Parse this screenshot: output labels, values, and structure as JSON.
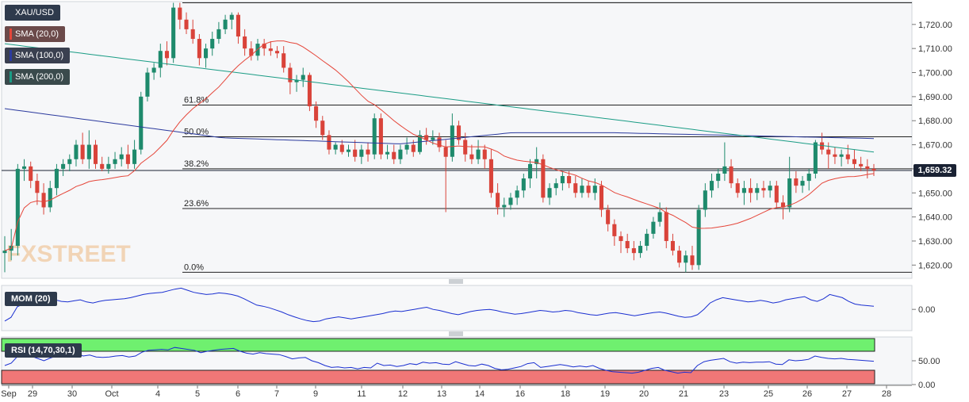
{
  "chart_data": {
    "type": "candlestick",
    "symbol": "XAU/USD",
    "last_price": "1,659.32",
    "y_ticks": [
      "1,720.00",
      "1,710.00",
      "1,700.00",
      "1,690.00",
      "1,680.00",
      "1,670.00",
      "1,660.00",
      "1,650.00",
      "1,640.00",
      "1,630.00",
      "1,620.00"
    ],
    "y_tick_values": [
      1720,
      1710,
      1700,
      1690,
      1680,
      1670,
      1660,
      1650,
      1640,
      1630,
      1620
    ],
    "ylim": [
      1614.5,
      1729.5
    ],
    "x_ticks": [
      "Sep",
      "29",
      "30",
      "Oct",
      "4",
      "5",
      "6",
      "7",
      "9",
      "11",
      "12",
      "13",
      "14",
      "16",
      "18",
      "19",
      "20",
      "21",
      "23",
      "25",
      "26",
      "27",
      "28"
    ],
    "legend": [
      {
        "name": "SMA (20,0)",
        "color": "#e5463a"
      },
      {
        "name": "SMA (100,0)",
        "color": "#2b3a9e"
      },
      {
        "name": "SMA (200,0)",
        "color": "#1a9c85"
      }
    ],
    "fibonacci": [
      {
        "label": "61.8%",
        "value": 1686.5
      },
      {
        "label": "50.0%",
        "value": 1673.3
      },
      {
        "label": "38.2%",
        "value": 1660.0
      },
      {
        "label": "23.6%",
        "value": 1643.5
      },
      {
        "label": "0.0%",
        "value": 1617.0
      }
    ],
    "top_line": 1729.0,
    "candles": [
      {
        "o": 1625,
        "h": 1632,
        "l": 1617,
        "c": 1626
      },
      {
        "o": 1626,
        "h": 1635,
        "l": 1622,
        "c": 1628
      },
      {
        "o": 1628,
        "h": 1662,
        "l": 1624,
        "c": 1660
      },
      {
        "o": 1660,
        "h": 1664,
        "l": 1655,
        "c": 1661
      },
      {
        "o": 1661,
        "h": 1663,
        "l": 1652,
        "c": 1655
      },
      {
        "o": 1655,
        "h": 1658,
        "l": 1645,
        "c": 1650
      },
      {
        "o": 1650,
        "h": 1654,
        "l": 1641,
        "c": 1644
      },
      {
        "o": 1644,
        "h": 1655,
        "l": 1642,
        "c": 1652
      },
      {
        "o": 1652,
        "h": 1662,
        "l": 1649,
        "c": 1660
      },
      {
        "o": 1660,
        "h": 1664,
        "l": 1657,
        "c": 1662
      },
      {
        "o": 1662,
        "h": 1666,
        "l": 1659,
        "c": 1664
      },
      {
        "o": 1664,
        "h": 1672,
        "l": 1661,
        "c": 1670
      },
      {
        "o": 1670,
        "h": 1675,
        "l": 1662,
        "c": 1664
      },
      {
        "o": 1664,
        "h": 1676,
        "l": 1660,
        "c": 1670
      },
      {
        "o": 1670,
        "h": 1672,
        "l": 1660,
        "c": 1662
      },
      {
        "o": 1662,
        "h": 1665,
        "l": 1659,
        "c": 1660
      },
      {
        "o": 1660,
        "h": 1665,
        "l": 1658,
        "c": 1662
      },
      {
        "o": 1662,
        "h": 1667,
        "l": 1660,
        "c": 1664
      },
      {
        "o": 1664,
        "h": 1669,
        "l": 1661,
        "c": 1666
      },
      {
        "o": 1666,
        "h": 1670,
        "l": 1660,
        "c": 1662
      },
      {
        "o": 1662,
        "h": 1672,
        "l": 1660,
        "c": 1668
      },
      {
        "o": 1668,
        "h": 1692,
        "l": 1666,
        "c": 1690
      },
      {
        "o": 1690,
        "h": 1702,
        "l": 1688,
        "c": 1700
      },
      {
        "o": 1700,
        "h": 1704,
        "l": 1697,
        "c": 1702
      },
      {
        "o": 1702,
        "h": 1712,
        "l": 1698,
        "c": 1709
      },
      {
        "o": 1709,
        "h": 1713,
        "l": 1703,
        "c": 1706
      },
      {
        "o": 1706,
        "h": 1729,
        "l": 1704,
        "c": 1727
      },
      {
        "o": 1727,
        "h": 1729,
        "l": 1718,
        "c": 1722
      },
      {
        "o": 1722,
        "h": 1725,
        "l": 1716,
        "c": 1718
      },
      {
        "o": 1718,
        "h": 1722,
        "l": 1712,
        "c": 1714
      },
      {
        "o": 1714,
        "h": 1716,
        "l": 1703,
        "c": 1706
      },
      {
        "o": 1706,
        "h": 1712,
        "l": 1702,
        "c": 1710
      },
      {
        "o": 1710,
        "h": 1717,
        "l": 1707,
        "c": 1714
      },
      {
        "o": 1714,
        "h": 1721,
        "l": 1712,
        "c": 1718
      },
      {
        "o": 1718,
        "h": 1724,
        "l": 1716,
        "c": 1722
      },
      {
        "o": 1722,
        "h": 1725,
        "l": 1718,
        "c": 1724
      },
      {
        "o": 1724,
        "h": 1725,
        "l": 1712,
        "c": 1715
      },
      {
        "o": 1715,
        "h": 1718,
        "l": 1707,
        "c": 1710
      },
      {
        "o": 1710,
        "h": 1713,
        "l": 1705,
        "c": 1707
      },
      {
        "o": 1707,
        "h": 1714,
        "l": 1705,
        "c": 1712
      },
      {
        "o": 1712,
        "h": 1714,
        "l": 1707,
        "c": 1710
      },
      {
        "o": 1710,
        "h": 1713,
        "l": 1707,
        "c": 1709
      },
      {
        "o": 1709,
        "h": 1711,
        "l": 1706,
        "c": 1708
      },
      {
        "o": 1708,
        "h": 1711,
        "l": 1700,
        "c": 1702
      },
      {
        "o": 1702,
        "h": 1704,
        "l": 1691,
        "c": 1696
      },
      {
        "o": 1696,
        "h": 1699,
        "l": 1692,
        "c": 1697
      },
      {
        "o": 1697,
        "h": 1702,
        "l": 1694,
        "c": 1699
      },
      {
        "o": 1699,
        "h": 1700,
        "l": 1684,
        "c": 1686
      },
      {
        "o": 1686,
        "h": 1688,
        "l": 1677,
        "c": 1680
      },
      {
        "o": 1680,
        "h": 1682,
        "l": 1672,
        "c": 1674
      },
      {
        "o": 1674,
        "h": 1676,
        "l": 1666,
        "c": 1668
      },
      {
        "o": 1668,
        "h": 1671,
        "l": 1666,
        "c": 1670
      },
      {
        "o": 1670,
        "h": 1672,
        "l": 1666,
        "c": 1667
      },
      {
        "o": 1667,
        "h": 1670,
        "l": 1665,
        "c": 1668
      },
      {
        "o": 1668,
        "h": 1672,
        "l": 1663,
        "c": 1665
      },
      {
        "o": 1665,
        "h": 1670,
        "l": 1662,
        "c": 1668
      },
      {
        "o": 1668,
        "h": 1671,
        "l": 1663,
        "c": 1666
      },
      {
        "o": 1666,
        "h": 1683,
        "l": 1664,
        "c": 1681
      },
      {
        "o": 1681,
        "h": 1683,
        "l": 1664,
        "c": 1666
      },
      {
        "o": 1666,
        "h": 1670,
        "l": 1664,
        "c": 1667
      },
      {
        "o": 1667,
        "h": 1670,
        "l": 1662,
        "c": 1664
      },
      {
        "o": 1664,
        "h": 1670,
        "l": 1662,
        "c": 1668
      },
      {
        "o": 1668,
        "h": 1673,
        "l": 1666,
        "c": 1670
      },
      {
        "o": 1670,
        "h": 1672,
        "l": 1665,
        "c": 1667
      },
      {
        "o": 1667,
        "h": 1676,
        "l": 1666,
        "c": 1674
      },
      {
        "o": 1674,
        "h": 1677,
        "l": 1670,
        "c": 1672
      },
      {
        "o": 1672,
        "h": 1676,
        "l": 1670,
        "c": 1673
      },
      {
        "o": 1673,
        "h": 1675,
        "l": 1667,
        "c": 1669
      },
      {
        "o": 1669,
        "h": 1672,
        "l": 1642,
        "c": 1665
      },
      {
        "o": 1665,
        "h": 1683,
        "l": 1663,
        "c": 1678
      },
      {
        "o": 1678,
        "h": 1680,
        "l": 1670,
        "c": 1672
      },
      {
        "o": 1672,
        "h": 1675,
        "l": 1663,
        "c": 1666
      },
      {
        "o": 1666,
        "h": 1670,
        "l": 1662,
        "c": 1664
      },
      {
        "o": 1664,
        "h": 1672,
        "l": 1662,
        "c": 1668
      },
      {
        "o": 1668,
        "h": 1670,
        "l": 1660,
        "c": 1664
      },
      {
        "o": 1664,
        "h": 1668,
        "l": 1648,
        "c": 1650
      },
      {
        "o": 1650,
        "h": 1654,
        "l": 1641,
        "c": 1644
      },
      {
        "o": 1644,
        "h": 1648,
        "l": 1640,
        "c": 1645
      },
      {
        "o": 1645,
        "h": 1650,
        "l": 1643,
        "c": 1648
      },
      {
        "o": 1648,
        "h": 1653,
        "l": 1645,
        "c": 1651
      },
      {
        "o": 1651,
        "h": 1658,
        "l": 1648,
        "c": 1656
      },
      {
        "o": 1656,
        "h": 1664,
        "l": 1652,
        "c": 1662
      },
      {
        "o": 1662,
        "h": 1669,
        "l": 1656,
        "c": 1664
      },
      {
        "o": 1664,
        "h": 1666,
        "l": 1646,
        "c": 1648
      },
      {
        "o": 1648,
        "h": 1654,
        "l": 1645,
        "c": 1652
      },
      {
        "o": 1652,
        "h": 1656,
        "l": 1649,
        "c": 1654
      },
      {
        "o": 1654,
        "h": 1659,
        "l": 1651,
        "c": 1657
      },
      {
        "o": 1657,
        "h": 1659,
        "l": 1652,
        "c": 1654
      },
      {
        "o": 1654,
        "h": 1657,
        "l": 1648,
        "c": 1650
      },
      {
        "o": 1650,
        "h": 1656,
        "l": 1648,
        "c": 1653
      },
      {
        "o": 1653,
        "h": 1655,
        "l": 1648,
        "c": 1650
      },
      {
        "o": 1650,
        "h": 1656,
        "l": 1647,
        "c": 1653
      },
      {
        "o": 1653,
        "h": 1655,
        "l": 1640,
        "c": 1643
      },
      {
        "o": 1643,
        "h": 1645,
        "l": 1634,
        "c": 1637
      },
      {
        "o": 1637,
        "h": 1639,
        "l": 1628,
        "c": 1632
      },
      {
        "o": 1632,
        "h": 1634,
        "l": 1625,
        "c": 1630
      },
      {
        "o": 1630,
        "h": 1633,
        "l": 1625,
        "c": 1627
      },
      {
        "o": 1627,
        "h": 1630,
        "l": 1622,
        "c": 1625
      },
      {
        "o": 1625,
        "h": 1630,
        "l": 1623,
        "c": 1628
      },
      {
        "o": 1628,
        "h": 1635,
        "l": 1626,
        "c": 1633
      },
      {
        "o": 1633,
        "h": 1640,
        "l": 1631,
        "c": 1638
      },
      {
        "o": 1638,
        "h": 1646,
        "l": 1636,
        "c": 1642
      },
      {
        "o": 1642,
        "h": 1644,
        "l": 1627,
        "c": 1630
      },
      {
        "o": 1630,
        "h": 1633,
        "l": 1624,
        "c": 1626
      },
      {
        "o": 1626,
        "h": 1628,
        "l": 1619,
        "c": 1621
      },
      {
        "o": 1621,
        "h": 1626,
        "l": 1617,
        "c": 1624
      },
      {
        "o": 1624,
        "h": 1628,
        "l": 1618,
        "c": 1620
      },
      {
        "o": 1620,
        "h": 1645,
        "l": 1618,
        "c": 1643
      },
      {
        "o": 1643,
        "h": 1654,
        "l": 1640,
        "c": 1651
      },
      {
        "o": 1651,
        "h": 1658,
        "l": 1648,
        "c": 1655
      },
      {
        "o": 1655,
        "h": 1660,
        "l": 1652,
        "c": 1658
      },
      {
        "o": 1658,
        "h": 1671,
        "l": 1655,
        "c": 1661
      },
      {
        "o": 1661,
        "h": 1664,
        "l": 1652,
        "c": 1654
      },
      {
        "o": 1654,
        "h": 1656,
        "l": 1648,
        "c": 1650
      },
      {
        "o": 1650,
        "h": 1655,
        "l": 1645,
        "c": 1652
      },
      {
        "o": 1652,
        "h": 1656,
        "l": 1646,
        "c": 1650
      },
      {
        "o": 1650,
        "h": 1654,
        "l": 1647,
        "c": 1652
      },
      {
        "o": 1652,
        "h": 1655,
        "l": 1648,
        "c": 1651
      },
      {
        "o": 1651,
        "h": 1655,
        "l": 1648,
        "c": 1653
      },
      {
        "o": 1653,
        "h": 1655,
        "l": 1644,
        "c": 1646
      },
      {
        "o": 1646,
        "h": 1649,
        "l": 1639,
        "c": 1644
      },
      {
        "o": 1644,
        "h": 1665,
        "l": 1642,
        "c": 1656
      },
      {
        "o": 1656,
        "h": 1659,
        "l": 1650,
        "c": 1653
      },
      {
        "o": 1653,
        "h": 1657,
        "l": 1650,
        "c": 1655
      },
      {
        "o": 1655,
        "h": 1660,
        "l": 1651,
        "c": 1658
      },
      {
        "o": 1658,
        "h": 1672,
        "l": 1656,
        "c": 1671
      },
      {
        "o": 1671,
        "h": 1675,
        "l": 1666,
        "c": 1668
      },
      {
        "o": 1668,
        "h": 1671,
        "l": 1660,
        "c": 1666
      },
      {
        "o": 1666,
        "h": 1669,
        "l": 1662,
        "c": 1665
      },
      {
        "o": 1665,
        "h": 1668,
        "l": 1661,
        "c": 1666
      },
      {
        "o": 1666,
        "h": 1670,
        "l": 1662,
        "c": 1664
      },
      {
        "o": 1664,
        "h": 1668,
        "l": 1660,
        "c": 1662
      },
      {
        "o": 1662,
        "h": 1665,
        "l": 1659,
        "c": 1661
      },
      {
        "o": 1661,
        "h": 1664,
        "l": 1656,
        "c": 1660
      },
      {
        "o": 1660,
        "h": 1662,
        "l": 1657,
        "c": 1659.3
      }
    ],
    "momentum": {
      "label": "MOM (20)",
      "y_ticks": [
        "0.00"
      ],
      "y_tick_values": [
        0
      ],
      "ylim": [
        -40,
        45
      ],
      "values": [
        -22,
        -15,
        5,
        10,
        12,
        14,
        13,
        16,
        18,
        15,
        14,
        16,
        18,
        14,
        12,
        15,
        17,
        18,
        19,
        20,
        22,
        25,
        28,
        30,
        31,
        32,
        35,
        38,
        40,
        36,
        32,
        30,
        28,
        29,
        31,
        30,
        28,
        25,
        20,
        14,
        8,
        6,
        3,
        -1,
        -5,
        -10,
        -14,
        -18,
        -21,
        -23,
        -22,
        -18,
        -16,
        -14,
        -16,
        -18,
        -16,
        -14,
        -12,
        -10,
        -8,
        -5,
        -3,
        -4,
        -2,
        0,
        2,
        4,
        0,
        -2,
        -5,
        -8,
        -10,
        -7,
        -4,
        -2,
        -1,
        0,
        -2,
        -5,
        -7,
        -9,
        -8,
        -6,
        -4,
        -2,
        -3,
        -5,
        -4,
        -2,
        -3,
        -6,
        -8,
        -10,
        -11,
        -9,
        -7,
        -6,
        -8,
        -10,
        -12,
        -10,
        -8,
        -6,
        -5,
        -7,
        -10,
        -13,
        -15,
        -14,
        -10,
        0,
        12,
        18,
        22,
        20,
        18,
        16,
        14,
        15,
        17,
        15,
        12,
        14,
        18,
        20,
        22,
        24,
        18,
        15,
        20,
        28,
        25,
        22,
        15,
        10,
        8,
        7,
        6
      ],
      "color": "#1a2fd1"
    },
    "rsi": {
      "label": "RSI (14,70,30,1)",
      "y_ticks": [
        "50.00",
        "0.00"
      ],
      "y_tick_values": [
        50,
        0
      ],
      "ylim": [
        0,
        100
      ],
      "overbought": 70,
      "oversold": 30,
      "values": [
        40,
        45,
        60,
        62,
        60,
        55,
        50,
        56,
        60,
        62,
        63,
        66,
        60,
        62,
        58,
        57,
        58,
        60,
        61,
        58,
        60,
        68,
        72,
        73,
        74,
        73,
        78,
        76,
        74,
        72,
        67,
        70,
        72,
        74,
        75,
        76,
        70,
        66,
        64,
        67,
        65,
        64,
        63,
        59,
        54,
        56,
        57,
        50,
        46,
        40,
        36,
        37,
        35,
        36,
        33,
        36,
        35,
        45,
        40,
        41,
        38,
        40,
        44,
        42,
        47,
        45,
        46,
        43,
        42,
        48,
        44,
        40,
        39,
        43,
        40,
        34,
        31,
        32,
        35,
        38,
        44,
        46,
        36,
        38,
        40,
        42,
        40,
        37,
        39,
        37,
        40,
        34,
        30,
        27,
        26,
        25,
        24,
        26,
        30,
        34,
        36,
        30,
        27,
        24,
        26,
        25,
        40,
        48,
        51,
        53,
        55,
        48,
        45,
        47,
        46,
        47,
        47,
        48,
        43,
        42,
        52,
        50,
        51,
        53,
        60,
        57,
        55,
        54,
        55,
        53,
        52,
        51,
        50,
        49
      ],
      "color": "#1a2fd1"
    }
  }
}
